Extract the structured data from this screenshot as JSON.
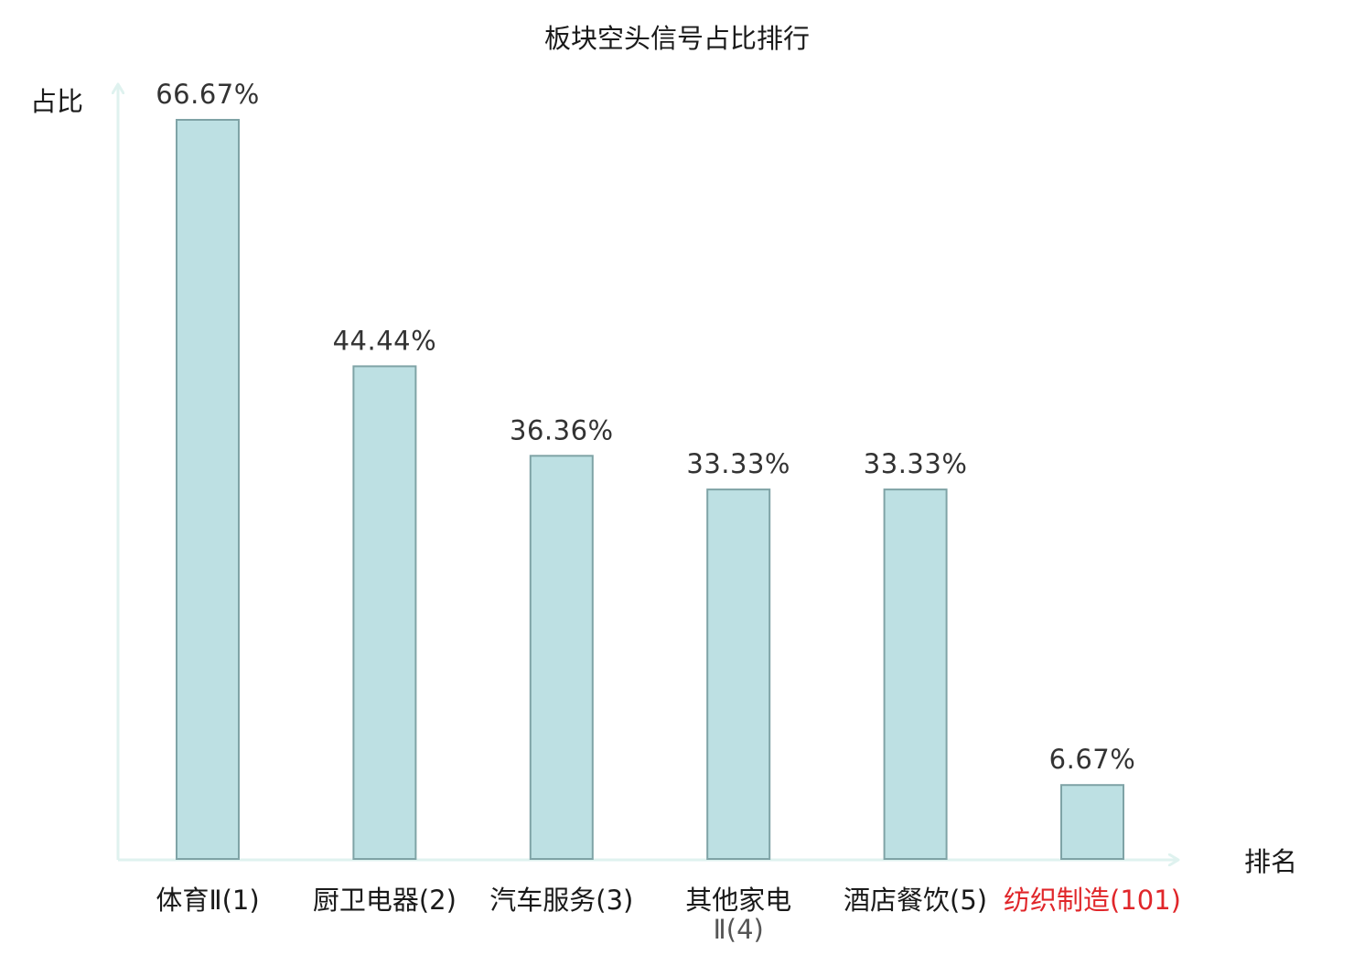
{
  "chart_data": {
    "type": "bar",
    "title": "板块空头信号占比排行",
    "ylabel": "占比",
    "xlabel": "排名",
    "ylim": [
      0,
      70
    ],
    "grid": false,
    "legend": "none",
    "bar_color": "#bde0e3",
    "bar_edge_color": "#7fa3a6",
    "axis_color": "#dff2ef",
    "highlight_color": "#e0262a",
    "categories": [
      {
        "name": "体育Ⅱ",
        "rank": "(1)",
        "wrap": false,
        "highlight": false
      },
      {
        "name": "厨卫电器",
        "rank": "(2)",
        "wrap": false,
        "highlight": false
      },
      {
        "name": "汽车服务",
        "rank": "(3)",
        "wrap": false,
        "highlight": false
      },
      {
        "name": "其他家电",
        "rank": "Ⅱ(4)",
        "wrap": true,
        "highlight": false
      },
      {
        "name": "酒店餐饮",
        "rank": "(5)",
        "wrap": false,
        "highlight": false
      },
      {
        "name": "纺织制造",
        "rank": "(101)",
        "wrap": false,
        "highlight": true
      }
    ],
    "values": [
      66.67,
      44.44,
      36.36,
      33.33,
      33.33,
      6.67
    ],
    "value_labels": [
      "66.67%",
      "44.44%",
      "36.36%",
      "33.33%",
      "33.33%",
      "6.67%"
    ]
  }
}
